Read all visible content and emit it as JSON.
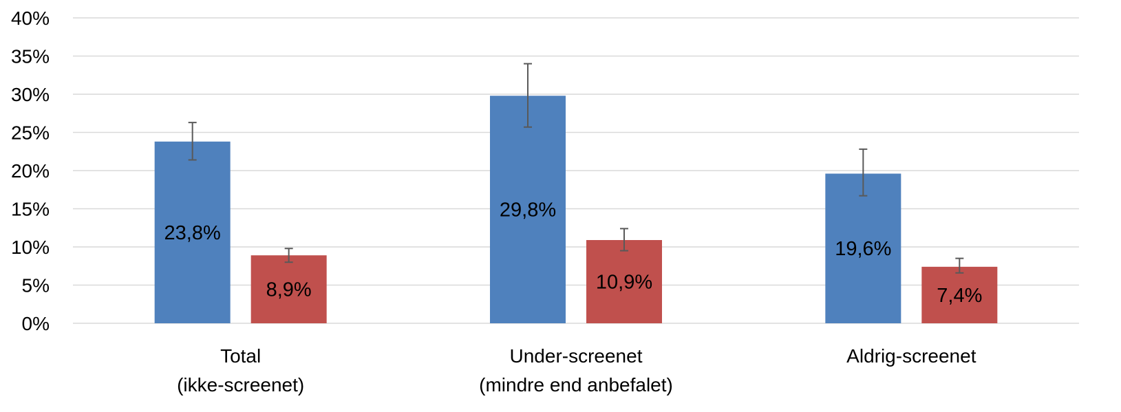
{
  "chart_data": {
    "type": "bar",
    "categories": [
      [
        "Total",
        "(ikke-screenet)"
      ],
      [
        "Under-screenet",
        "(mindre end anbefalet)"
      ],
      [
        "Aldrig-screenet"
      ]
    ],
    "series": [
      {
        "color": "#4f81bd",
        "values": [
          23.8,
          29.8,
          19.6
        ],
        "labels": [
          "23,8%",
          "29,8%",
          "19,6%"
        ],
        "error_low": [
          21.4,
          25.7,
          16.7
        ],
        "error_high": [
          26.3,
          34.0,
          22.8
        ]
      },
      {
        "color": "#c0504d",
        "values": [
          8.9,
          10.9,
          7.4
        ],
        "labels": [
          "8,9%",
          "10,9%",
          "7,4%"
        ],
        "error_low": [
          8.0,
          9.5,
          6.6
        ],
        "error_high": [
          9.8,
          12.4,
          8.5
        ]
      }
    ],
    "yticks": [
      0,
      5,
      10,
      15,
      20,
      25,
      30,
      35,
      40
    ],
    "ytick_labels": [
      "0%",
      "5%",
      "10%",
      "15%",
      "20%",
      "25%",
      "30%",
      "35%",
      "40%"
    ],
    "ylim": [
      0,
      40
    ],
    "grid": true,
    "legend": "none"
  }
}
